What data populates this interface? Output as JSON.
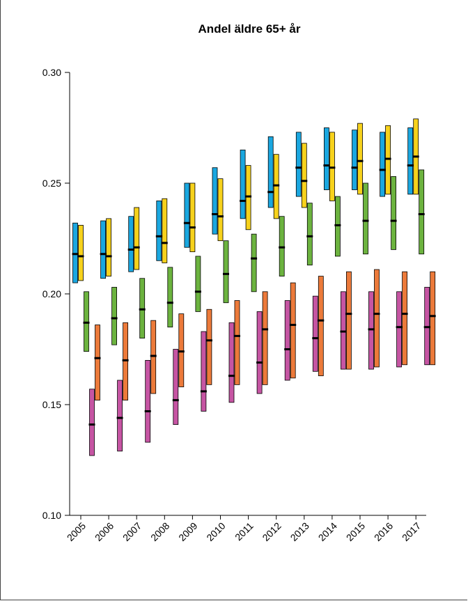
{
  "chart_data": {
    "type": "bar",
    "subtype": "range-bars-with-median",
    "title": "Andel äldre 65+ år",
    "xlabel": "",
    "ylabel": "",
    "ylim": [
      0.1,
      0.3
    ],
    "yticks": [
      "0.10",
      "0.15",
      "0.20",
      "0.25",
      "0.30"
    ],
    "categories": [
      "2005",
      "2006",
      "2007",
      "2008",
      "2009",
      "2010",
      "2011",
      "2012",
      "2013",
      "2014",
      "2015",
      "2016",
      "2017"
    ],
    "grid": false,
    "legend": "none",
    "series": [
      {
        "color": "#1aa7e0",
        "low": [
          0.205,
          0.207,
          0.21,
          0.215,
          0.221,
          0.227,
          0.234,
          0.239,
          0.244,
          0.247,
          0.247,
          0.244,
          0.245
        ],
        "median": [
          0.218,
          0.218,
          0.22,
          0.226,
          0.232,
          0.236,
          0.242,
          0.246,
          0.257,
          0.258,
          0.257,
          0.256,
          0.258
        ],
        "high": [
          0.232,
          0.233,
          0.235,
          0.242,
          0.25,
          0.257,
          0.265,
          0.271,
          0.273,
          0.275,
          0.274,
          0.273,
          0.275
        ]
      },
      {
        "color": "#f7d21c",
        "low": [
          0.206,
          0.208,
          0.211,
          0.214,
          0.219,
          0.224,
          0.229,
          0.234,
          0.239,
          0.242,
          0.245,
          0.245,
          0.245
        ],
        "median": [
          0.217,
          0.217,
          0.221,
          0.223,
          0.23,
          0.235,
          0.244,
          0.249,
          0.251,
          0.257,
          0.26,
          0.261,
          0.262
        ],
        "high": [
          0.231,
          0.234,
          0.239,
          0.243,
          0.25,
          0.252,
          0.258,
          0.263,
          0.268,
          0.273,
          0.277,
          0.276,
          0.279
        ]
      },
      {
        "color": "#6cb33f",
        "low": [
          0.174,
          0.177,
          0.18,
          0.185,
          0.192,
          0.196,
          0.201,
          0.208,
          0.213,
          0.217,
          0.218,
          0.22,
          0.218
        ],
        "median": [
          0.187,
          0.189,
          0.193,
          0.196,
          0.201,
          0.209,
          0.216,
          0.221,
          0.226,
          0.231,
          0.233,
          0.233,
          0.236
        ],
        "high": [
          0.201,
          0.203,
          0.207,
          0.212,
          0.217,
          0.224,
          0.227,
          0.235,
          0.241,
          0.244,
          0.25,
          0.253,
          0.256
        ]
      },
      {
        "color": "#c655a3",
        "low": [
          0.127,
          0.129,
          0.133,
          0.141,
          0.147,
          0.151,
          0.155,
          0.161,
          0.165,
          0.166,
          0.166,
          0.167,
          0.168
        ],
        "median": [
          0.141,
          0.144,
          0.147,
          0.152,
          0.156,
          0.163,
          0.169,
          0.175,
          0.18,
          0.183,
          0.184,
          0.185,
          0.185
        ],
        "high": [
          0.157,
          0.161,
          0.17,
          0.175,
          0.183,
          0.187,
          0.192,
          0.197,
          0.199,
          0.201,
          0.201,
          0.201,
          0.203
        ]
      },
      {
        "color": "#ec7a3a",
        "low": [
          0.152,
          0.152,
          0.155,
          0.158,
          0.159,
          0.159,
          0.159,
          0.162,
          0.163,
          0.166,
          0.167,
          0.168,
          0.168
        ],
        "median": [
          0.171,
          0.17,
          0.172,
          0.174,
          0.179,
          0.181,
          0.184,
          0.186,
          0.188,
          0.191,
          0.191,
          0.191,
          0.19
        ],
        "high": [
          0.186,
          0.187,
          0.188,
          0.191,
          0.193,
          0.197,
          0.201,
          0.205,
          0.208,
          0.21,
          0.211,
          0.21,
          0.21
        ]
      }
    ]
  }
}
